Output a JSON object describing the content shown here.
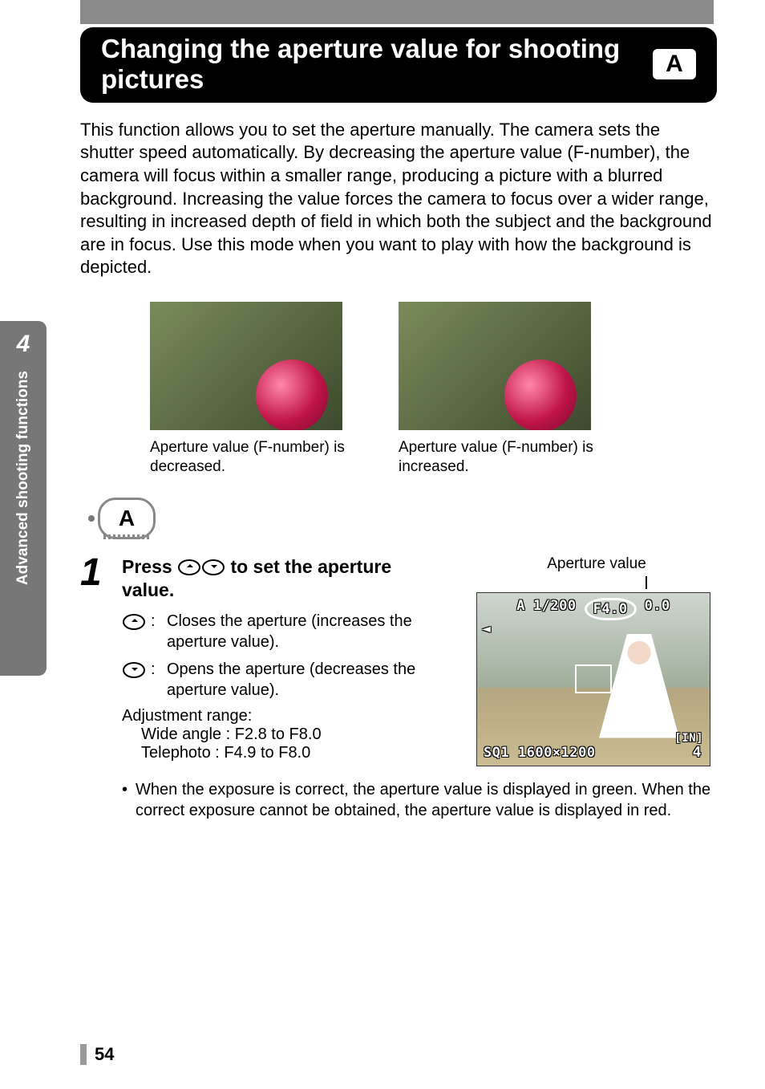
{
  "title": "Changing the aperture value for shooting pictures",
  "mode_badge": "A",
  "intro": "This function allows you to set the aperture manually. The camera sets the shutter speed automatically. By decreasing the aperture value (F-number), the camera will focus within a smaller range, producing a picture with a blurred background. Increasing the value forces the camera to focus over a wider range, resulting in increased depth of field in which both the subject and the background are in focus. Use this mode when you want to play with how the background is depicted.",
  "example_left_caption": "Aperture value (F-number) is decreased.",
  "example_right_caption": "Aperture value (F-number) is increased.",
  "sidebar": {
    "chapter_number": "4",
    "chapter_text": "Advanced shooting functions"
  },
  "dial_letter": "A",
  "step": {
    "number": "1",
    "heading_prefix": "Press ",
    "heading_suffix": " to set the aperture value.",
    "up_desc": "Closes the aperture (increases the aperture value).",
    "down_desc": "Opens the aperture (decreases the aperture value).",
    "adj_label": "Adjustment range:",
    "adj_wide": "Wide angle : F2.8 to F8.0",
    "adj_tele": "Telephoto   : F4.9 to F8.0",
    "bullet": "When the exposure is correct, the aperture value is displayed in green. When the correct exposure cannot be obtained, the aperture value is displayed in red."
  },
  "lcd": {
    "caption": "Aperture value",
    "mode": "A",
    "shutter": "1/200",
    "aperture": "F4.0",
    "ev": "0.0",
    "in_label": "[IN]",
    "frames": "4",
    "bottom": "SQ1 1600×1200",
    "zoom_icon": "◄"
  },
  "page_number": "54",
  "colors": {
    "band_bg": "#000000",
    "band_fg": "#ffffff",
    "gray_bar": "#8a8a8a",
    "side_tab": "#777777"
  }
}
